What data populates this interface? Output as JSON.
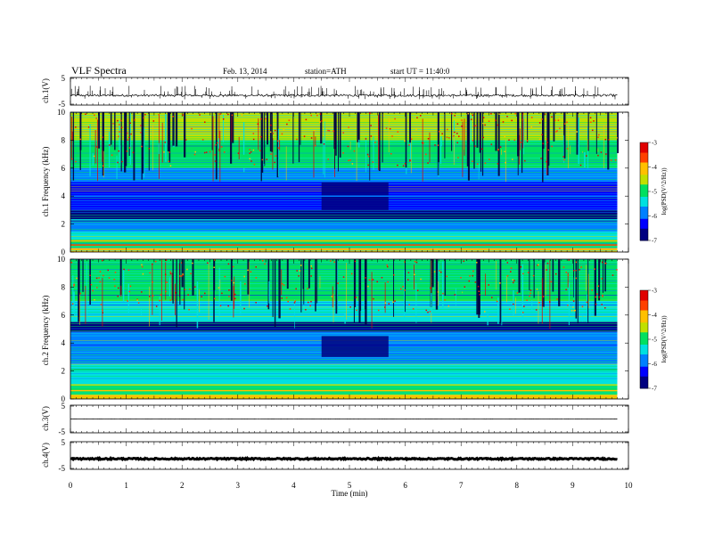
{
  "header": {
    "title": "VLF  Spectra",
    "date": "Feb. 13, 2014",
    "station": "station=ATH",
    "start": "start  UT  =   11:40:0"
  },
  "colorbar": {
    "label": "log(PSD(V^2/Hz))",
    "ticks": [
      "-3",
      "-4",
      "-5",
      "-6",
      "-7"
    ],
    "colors": [
      "#000080",
      "#0000ff",
      "#0080ff",
      "#00e0e0",
      "#00e060",
      "#c0e000",
      "#ffc000",
      "#ff4000",
      "#e00000",
      "#ffffff"
    ]
  },
  "chart_data": [
    {
      "type": "line",
      "ylabel": "ch.1(V)",
      "ylim": [
        -5,
        5
      ],
      "yticks": [
        "5",
        "-5"
      ],
      "xlim": [
        0,
        10
      ],
      "series": [
        {
          "baseline": -1.5,
          "noise": 0.4,
          "spike_count": 150,
          "spike_height": 3.0
        }
      ]
    },
    {
      "type": "heatmap",
      "ylabel": "ch.1 Frequency (kHz)",
      "ylim": [
        0,
        10
      ],
      "yticks": [
        "0",
        "2",
        "4",
        "6",
        "8",
        "10"
      ],
      "xlim": [
        0,
        10
      ],
      "data_xmax": 9.8,
      "zlim": [
        -7,
        -3
      ],
      "zlabel": "log(PSD(V^2/Hz))",
      "bands": [
        {
          "f": [
            8.0,
            10.0
          ],
          "z": -4.7
        },
        {
          "f": [
            6.0,
            8.0
          ],
          "z": -5.2
        },
        {
          "f": [
            5.0,
            6.0
          ],
          "z": -5.8
        },
        {
          "f": [
            3.0,
            5.0
          ],
          "z": -6.4
        },
        {
          "f": [
            2.2,
            3.0
          ],
          "z": -6.6
        },
        {
          "f": [
            1.5,
            2.2
          ],
          "z": -6.0
        },
        {
          "f": [
            0.9,
            1.5
          ],
          "z": -5.6
        },
        {
          "f": [
            0.3,
            0.9
          ],
          "z": -5.2
        },
        {
          "f": [
            0.0,
            0.3
          ],
          "z": -4.0
        }
      ],
      "lines": [
        {
          "f": 0.5,
          "z": -3.6
        },
        {
          "f": 0.8,
          "z": -3.9
        },
        {
          "f": 2.3,
          "z": -5.6
        },
        {
          "f": 4.0,
          "z": -5.7
        }
      ],
      "quiet_period": {
        "t": [
          4.5,
          5.7
        ],
        "f": [
          3.0,
          5.0
        ],
        "z": -7.0
      },
      "burst_count": 170
    },
    {
      "type": "heatmap",
      "ylabel": "ch.2 Frequency (kHz)",
      "ylim": [
        0,
        10
      ],
      "yticks": [
        "0",
        "2",
        "4",
        "6",
        "8",
        "10"
      ],
      "xlim": [
        0,
        10
      ],
      "data_xmax": 9.8,
      "zlim": [
        -7,
        -3
      ],
      "zlabel": "log(PSD(V^2/Hz))",
      "bands": [
        {
          "f": [
            7.0,
            10.0
          ],
          "z": -5.0
        },
        {
          "f": [
            5.5,
            7.0
          ],
          "z": -5.3
        },
        {
          "f": [
            4.8,
            5.5
          ],
          "z": -6.6
        },
        {
          "f": [
            2.5,
            4.8
          ],
          "z": -6.0
        },
        {
          "f": [
            1.0,
            2.5
          ],
          "z": -5.5
        },
        {
          "f": [
            0.3,
            1.0
          ],
          "z": -5.1
        },
        {
          "f": [
            0.0,
            0.3
          ],
          "z": -4.2
        }
      ],
      "lines": [
        {
          "f": 0.6,
          "z": -4.0
        },
        {
          "f": 1.0,
          "z": -4.5
        },
        {
          "f": 2.1,
          "z": -5.2
        }
      ],
      "quiet_period": {
        "t": [
          4.5,
          5.7
        ],
        "f": [
          3.0,
          4.5
        ],
        "z": -6.8
      },
      "burst_count": 150
    },
    {
      "type": "line",
      "ylabel": "ch.3(V)",
      "ylim": [
        -5,
        5
      ],
      "yticks": [
        "5",
        "-5"
      ],
      "xlim": [
        0,
        10
      ],
      "series": [
        {
          "baseline": 0.0,
          "noise": 0.05,
          "spike_count": 0,
          "spike_height": 0
        }
      ]
    },
    {
      "type": "line",
      "ylabel": "ch.4(V)",
      "ylim": [
        -5,
        5
      ],
      "yticks": [
        "5",
        "-5"
      ],
      "xlim": [
        0,
        10
      ],
      "series": [
        {
          "baseline": -1.2,
          "noise": 0.25,
          "spike_count": 0,
          "spike_height": 0
        }
      ]
    }
  ],
  "xaxis": {
    "label": "Time  (min)",
    "ticks": [
      "0",
      "1",
      "2",
      "3",
      "4",
      "5",
      "6",
      "7",
      "8",
      "9",
      "10"
    ]
  }
}
